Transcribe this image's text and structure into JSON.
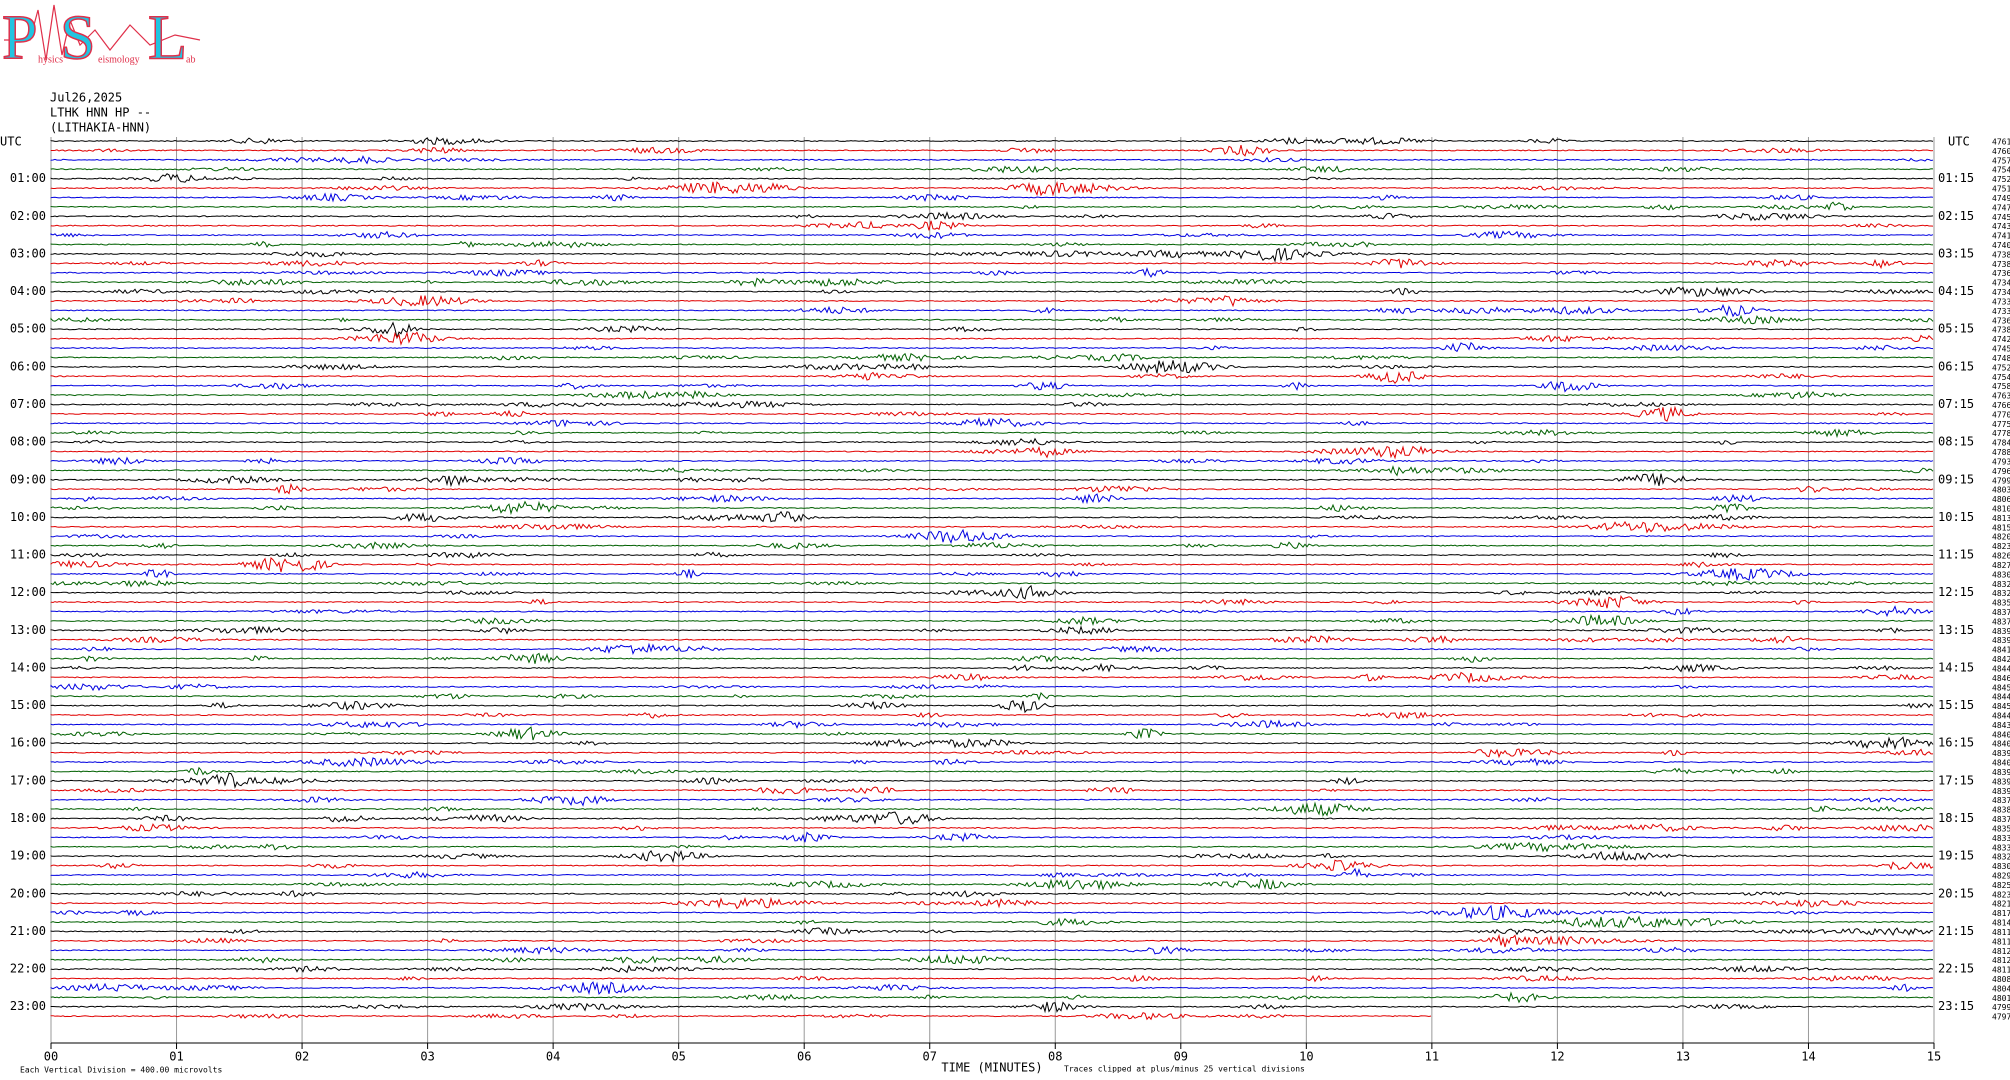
{
  "logo": {
    "letters": [
      "P",
      "S",
      "L"
    ],
    "small": [
      "hysics",
      "eismology",
      "ab"
    ]
  },
  "header": {
    "date": "Jul26,2025",
    "station": "LTHK HNN HP --",
    "site": "(LITHAKIA-HNN)"
  },
  "axis": {
    "utc_left": "UTC",
    "utc_right": "UTC",
    "left_labels": [
      "01:00",
      "02:00",
      "03:00",
      "04:00",
      "05:00",
      "06:00",
      "07:00",
      "08:00",
      "09:00",
      "10:00",
      "11:00",
      "12:00",
      "13:00",
      "14:00",
      "15:00",
      "16:00",
      "17:00",
      "18:00",
      "19:00",
      "20:00",
      "21:00",
      "22:00",
      "23:00"
    ],
    "right_labels": [
      "01:15",
      "02:15",
      "03:15",
      "04:15",
      "05:15",
      "06:15",
      "07:15",
      "08:15",
      "09:15",
      "10:15",
      "11:15",
      "12:15",
      "13:15",
      "14:15",
      "15:15",
      "16:15",
      "17:15",
      "18:15",
      "19:15",
      "20:15",
      "21:15",
      "22:15",
      "23:15"
    ],
    "xlim": [
      0,
      15
    ],
    "xticks": [
      {
        "value": 0,
        "label": "00"
      },
      {
        "value": 1,
        "label": "01"
      },
      {
        "value": 2,
        "label": "02"
      },
      {
        "value": 3,
        "label": "03"
      },
      {
        "value": 4,
        "label": "04"
      },
      {
        "value": 5,
        "label": "05"
      },
      {
        "value": 6,
        "label": "06"
      },
      {
        "value": 7,
        "label": "07"
      },
      {
        "value": 8,
        "label": "08"
      },
      {
        "value": 9,
        "label": "09"
      },
      {
        "value": 10,
        "label": "10"
      },
      {
        "value": 11,
        "label": "11"
      },
      {
        "value": 12,
        "label": "12"
      },
      {
        "value": 13,
        "label": "13"
      },
      {
        "value": 14,
        "label": "14"
      },
      {
        "value": 15,
        "label": "15"
      }
    ],
    "x_title": "TIME (MINUTES)",
    "footnote_left": "Each Vertical Division =  400.00 microvolts",
    "footnote_right": "Traces clipped at plus/minus 25 vertical divisions"
  },
  "trace_colors": [
    "#000000",
    "#e00000",
    "#0000e0",
    "#006000"
  ],
  "last_trace_minutes": 11,
  "trace_counts": [
    4761,
    4760,
    4757,
    4754,
    4752,
    4751,
    4749,
    4747,
    4745,
    4743,
    4741,
    4740,
    4738,
    4738,
    4736,
    4734,
    4734,
    4733,
    4733,
    4736,
    4738,
    4742,
    4745,
    4748,
    4752,
    4754,
    4758,
    4763,
    4766,
    4770,
    4775,
    4778,
    4784,
    4788,
    4793,
    4796,
    4799,
    4803,
    4806,
    4810,
    4813,
    4815,
    4820,
    4823,
    4826,
    4827,
    4830,
    4832,
    4832,
    4835,
    4837,
    4837,
    4839,
    4839,
    4841,
    4842,
    4844,
    4846,
    4845,
    4844,
    4845,
    4844,
    4843,
    4840,
    4840,
    4839,
    4840,
    4839,
    4839,
    4839,
    4837,
    4838,
    4837,
    4835,
    4833,
    4833,
    4832,
    4830,
    4829,
    4825,
    4823,
    4821,
    4817,
    4814,
    4811,
    4811,
    4812,
    4812,
    4811,
    4808,
    4804,
    4801,
    4799,
    4797
  ]
}
